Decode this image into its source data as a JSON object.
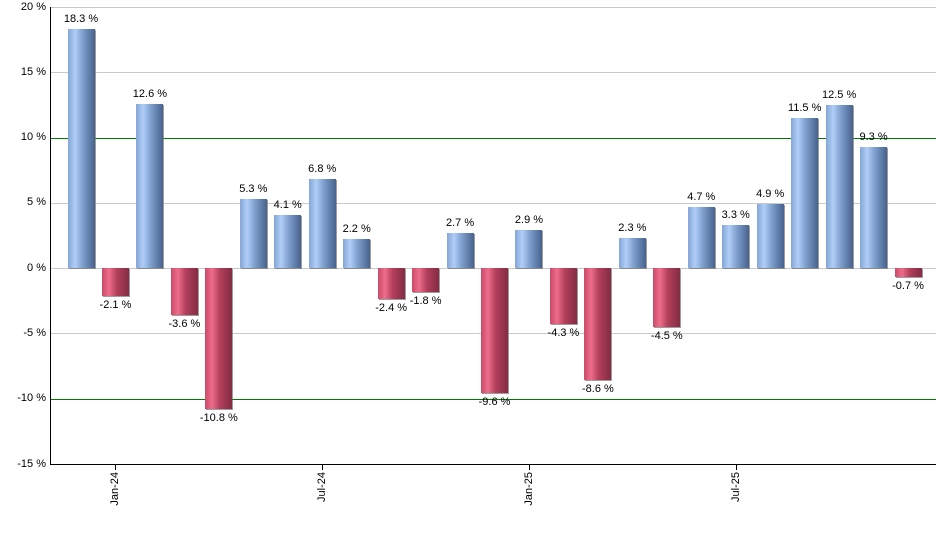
{
  "chart_data": {
    "type": "bar",
    "title": "",
    "unit": "%",
    "bars": [
      {
        "label": "18.3 %",
        "value": 18.3
      },
      {
        "label": "-2.1 %",
        "value": -2.1
      },
      {
        "label": "12.6 %",
        "value": 12.6
      },
      {
        "label": "-3.6 %",
        "value": -3.6
      },
      {
        "label": "-10.8 %",
        "value": -10.8
      },
      {
        "label": "5.3 %",
        "value": 5.3
      },
      {
        "label": "4.1 %",
        "value": 4.1
      },
      {
        "label": "6.8 %",
        "value": 6.8
      },
      {
        "label": "2.2 %",
        "value": 2.2
      },
      {
        "label": "-2.4 %",
        "value": -2.4
      },
      {
        "label": "-1.8 %",
        "value": -1.8
      },
      {
        "label": "2.7 %",
        "value": 2.7
      },
      {
        "label": "-9.6 %",
        "value": -9.6
      },
      {
        "label": "2.9 %",
        "value": 2.9
      },
      {
        "label": "-4.3 %",
        "value": -4.3
      },
      {
        "label": "-8.6 %",
        "value": -8.6
      },
      {
        "label": "2.3 %",
        "value": 2.3
      },
      {
        "label": "-4.5 %",
        "value": -4.5
      },
      {
        "label": "4.7 %",
        "value": 4.7
      },
      {
        "label": "3.3 %",
        "value": 3.3
      },
      {
        "label": "4.9 %",
        "value": 4.9
      },
      {
        "label": "11.5 %",
        "value": 11.5
      },
      {
        "label": "12.5 %",
        "value": 12.5
      },
      {
        "label": "9.3 %",
        "value": 9.3
      },
      {
        "label": "-0.7 %",
        "value": -0.7
      }
    ],
    "x_ticks": [
      {
        "label": "Jan-24",
        "bar_index": 1
      },
      {
        "label": "Jul-24",
        "bar_index": 7
      },
      {
        "label": "Jan-25",
        "bar_index": 13
      },
      {
        "label": "Jul-25",
        "bar_index": 19
      }
    ],
    "y_ticks": [
      {
        "label": "20 %",
        "value": 20
      },
      {
        "label": "15 %",
        "value": 15
      },
      {
        "label": "10 %",
        "value": 10
      },
      {
        "label": "5 %",
        "value": 5
      },
      {
        "label": "0 %",
        "value": 0
      },
      {
        "label": "-5 %",
        "value": -5
      },
      {
        "label": "-10 %",
        "value": -10
      },
      {
        "label": "-15 %",
        "value": -15
      }
    ],
    "ylim": [
      -15,
      20
    ],
    "reference_lines": [
      10,
      -10
    ],
    "grid": true,
    "legend": "none",
    "colors": {
      "positive": "#7ba1d6",
      "negative": "#c84a68",
      "reference_line": "#007b00",
      "gridline": "#c9c9c9",
      "axis": "#000000",
      "label_text": "#000000"
    }
  }
}
